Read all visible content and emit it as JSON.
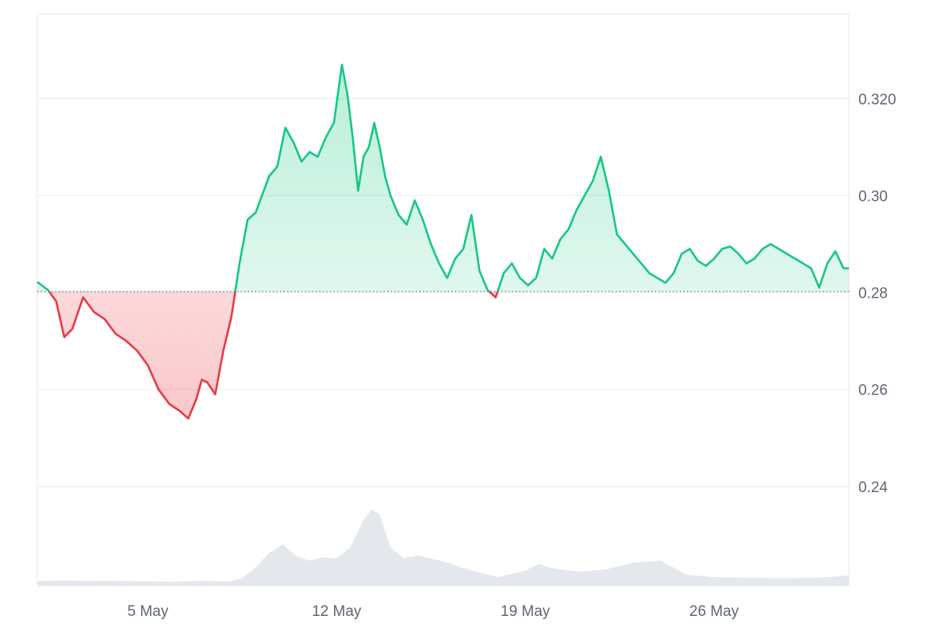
{
  "chart_data": {
    "type": "area",
    "title": "",
    "xlabel": "",
    "ylabel": "",
    "baseline": 0.2802,
    "ylim": [
      0.2195,
      0.3374
    ],
    "y_ticks": [
      {
        "value": 0.24,
        "label": "0.24"
      },
      {
        "value": 0.26,
        "label": "0.26"
      },
      {
        "value": 0.28,
        "label": "0.28"
      },
      {
        "value": 0.3,
        "label": "0.30"
      },
      {
        "value": 0.32,
        "label": "0.320"
      }
    ],
    "x_ticks": [
      {
        "label": "5 May",
        "day": 5
      },
      {
        "label": "12 May",
        "day": 12
      },
      {
        "label": "19 May",
        "day": 19
      },
      {
        "label": "26 May",
        "day": 26
      }
    ],
    "xlim_days": [
      0.9,
      31.0
    ],
    "grid": true,
    "colors": {
      "up_line": "#16c784",
      "up_fill": "#16c784",
      "down_line": "#ea3943",
      "down_fill": "#ea3943",
      "grid": "#eff1f4",
      "baseline": "#7a7f88",
      "volume": "#e4e8ec",
      "axis_text": "#5f6672"
    },
    "price_series": {
      "name": "",
      "x_days": [
        0.9,
        1.3,
        1.6,
        1.9,
        2.2,
        2.6,
        3.0,
        3.4,
        3.8,
        4.2,
        4.6,
        5.0,
        5.4,
        5.8,
        6.2,
        6.5,
        6.8,
        7.0,
        7.2,
        7.5,
        7.8,
        8.1,
        8.4,
        8.7,
        9.0,
        9.3,
        9.5,
        9.8,
        10.1,
        10.4,
        10.7,
        11.0,
        11.3,
        11.6,
        11.9,
        12.2,
        12.4,
        12.6,
        12.8,
        13.0,
        13.2,
        13.4,
        13.6,
        13.8,
        14.0,
        14.3,
        14.6,
        14.9,
        15.2,
        15.5,
        15.8,
        16.1,
        16.4,
        16.7,
        17.0,
        17.3,
        17.6,
        17.9,
        18.2,
        18.5,
        18.8,
        19.1,
        19.4,
        19.7,
        20.0,
        20.3,
        20.6,
        20.9,
        21.2,
        21.5,
        21.8,
        22.1,
        22.4,
        22.7,
        23.0,
        23.3,
        23.6,
        23.9,
        24.2,
        24.5,
        24.8,
        25.1,
        25.4,
        25.7,
        26.0,
        26.3,
        26.6,
        26.9,
        27.2,
        27.5,
        27.8,
        28.1,
        28.4,
        28.7,
        29.0,
        29.3,
        29.6,
        29.9,
        30.2,
        30.5,
        30.8,
        31.0
      ],
      "values": [
        0.2822,
        0.2805,
        0.2782,
        0.2708,
        0.2725,
        0.279,
        0.276,
        0.2745,
        0.2715,
        0.27,
        0.268,
        0.265,
        0.26,
        0.257,
        0.2555,
        0.254,
        0.258,
        0.262,
        0.2615,
        0.259,
        0.268,
        0.275,
        0.286,
        0.295,
        0.2965,
        0.301,
        0.304,
        0.306,
        0.314,
        0.311,
        0.307,
        0.309,
        0.308,
        0.312,
        0.315,
        0.327,
        0.321,
        0.312,
        0.301,
        0.308,
        0.31,
        0.315,
        0.31,
        0.304,
        0.3,
        0.296,
        0.294,
        0.299,
        0.295,
        0.29,
        0.286,
        0.283,
        0.287,
        0.289,
        0.296,
        0.2845,
        0.2805,
        0.279,
        0.284,
        0.286,
        0.283,
        0.2815,
        0.283,
        0.289,
        0.287,
        0.291,
        0.293,
        0.297,
        0.3,
        0.303,
        0.308,
        0.301,
        0.292,
        0.29,
        0.288,
        0.286,
        0.284,
        0.283,
        0.282,
        0.284,
        0.288,
        0.289,
        0.2865,
        0.2855,
        0.287,
        0.289,
        0.2895,
        0.288,
        0.286,
        0.287,
        0.289,
        0.29,
        0.289,
        0.288,
        0.287,
        0.286,
        0.285,
        0.281,
        0.286,
        0.2885,
        0.285,
        0.285
      ]
    },
    "volume_series": {
      "name": "",
      "x_days": [
        0.9,
        2.0,
        3.0,
        4.0,
        5.0,
        6.0,
        7.0,
        8.0,
        8.5,
        9.0,
        9.5,
        10.0,
        10.5,
        11.0,
        11.5,
        12.0,
        12.5,
        13.0,
        13.3,
        13.6,
        14.0,
        14.5,
        15.0,
        16.0,
        17.0,
        18.0,
        19.0,
        19.5,
        20.0,
        21.0,
        22.0,
        23.0,
        24.0,
        25.0,
        26.0,
        27.0,
        28.0,
        29.0,
        30.0,
        31.0
      ],
      "values": [
        0.045,
        0.048,
        0.046,
        0.044,
        0.04,
        0.038,
        0.045,
        0.04,
        0.07,
        0.17,
        0.3,
        0.38,
        0.27,
        0.23,
        0.26,
        0.25,
        0.35,
        0.6,
        0.7,
        0.65,
        0.35,
        0.25,
        0.28,
        0.22,
        0.14,
        0.08,
        0.14,
        0.2,
        0.16,
        0.13,
        0.15,
        0.21,
        0.23,
        0.1,
        0.08,
        0.075,
        0.07,
        0.07,
        0.075,
        0.095
      ]
    }
  }
}
